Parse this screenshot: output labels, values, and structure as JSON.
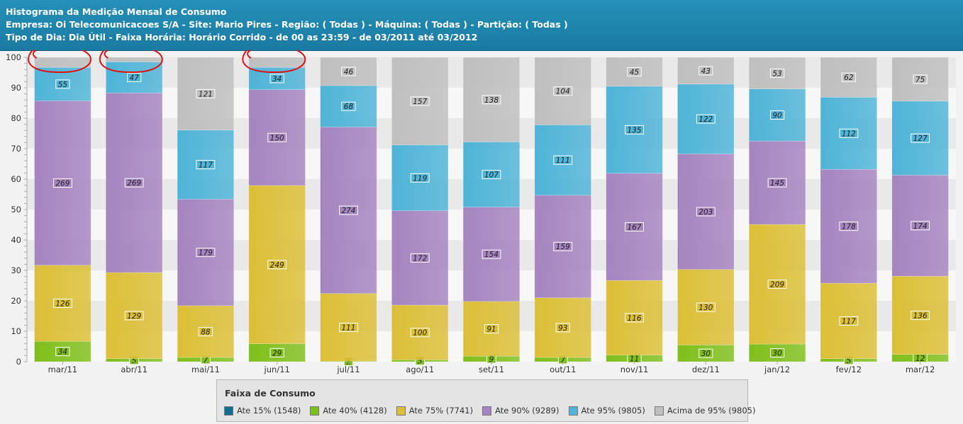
{
  "header": {
    "title": "Histograma da Medição Mensal de Consumo",
    "line2": "Empresa: Oi Telecomunicacoes S/A - Site: Mario Pires - Região: ( Todas ) - Máquina: ( Todas ) - Partição: ( Todas )",
    "line3": "Tipo de Dia: Dia Útil - Faixa Horária: Horário Corrido - de 00 as 23:59 - de 03/2011 até 03/2012"
  },
  "legend": {
    "title": "Faixa de Consumo",
    "items": [
      {
        "label": "Ate 15% (1548)",
        "color": "#0f6f93"
      },
      {
        "label": "Ate 40% (4128)",
        "color": "#7fbf1a"
      },
      {
        "label": "Ate 75% (7741)",
        "color": "#dcbf36"
      },
      {
        "label": "Ate 90% (9289)",
        "color": "#a584c0"
      },
      {
        "label": "Ate 95% (9805)",
        "color": "#4eb4d8"
      },
      {
        "label": "Acima de 95% (9805)",
        "color": "#bfbfbf"
      }
    ]
  },
  "chart_data": {
    "type": "bar",
    "stacked": true,
    "categories": [
      "mar/11",
      "abr/11",
      "mai/11",
      "jun/11",
      "jul/11",
      "ago/11",
      "set/11",
      "out/11",
      "nov/11",
      "dez/11",
      "jan/12",
      "fev/12",
      "mar/12"
    ],
    "ylim": [
      0,
      100
    ],
    "yticks": [
      0,
      10,
      20,
      30,
      40,
      50,
      60,
      70,
      80,
      90,
      100
    ],
    "grid": true,
    "legend_position": "bottom",
    "series": [
      {
        "name": "Ate 40%",
        "color": "#7fbf1a",
        "values": [
          6.7,
          1.0,
          1.4,
          5.9,
          0.2,
          0.6,
          1.8,
          1.4,
          2.2,
          5.5,
          5.8,
          1.0,
          2.4
        ],
        "labels": [
          "34",
          "5",
          "7",
          "29",
          "1",
          "3",
          "9",
          "7",
          "11",
          "30",
          "30",
          "5",
          "12"
        ]
      },
      {
        "name": "Ate 75%",
        "color": "#dcbf36",
        "values": [
          25.0,
          28.3,
          17.0,
          52.0,
          22.2,
          18.0,
          18.0,
          19.6,
          24.5,
          24.8,
          39.3,
          24.8,
          25.7
        ],
        "labels": [
          "126",
          "129",
          "88",
          "249",
          "111",
          "100",
          "91",
          "93",
          "116",
          "130",
          "209",
          "117",
          "136"
        ]
      },
      {
        "name": "Ate 90%",
        "color": "#a584c0",
        "values": [
          54.0,
          59.0,
          35.0,
          31.5,
          54.7,
          31.0,
          31.0,
          33.7,
          35.2,
          38.0,
          27.4,
          37.4,
          33.2
        ],
        "labels": [
          "269",
          "269",
          "179",
          "150",
          "274",
          "172",
          "154",
          "159",
          "167",
          "203",
          "145",
          "178",
          "174"
        ]
      },
      {
        "name": "Ate 95%",
        "color": "#4eb4d8",
        "values": [
          11.0,
          10.2,
          22.7,
          7.3,
          13.6,
          21.6,
          21.4,
          23.1,
          28.6,
          22.9,
          17.1,
          23.7,
          24.3
        ],
        "labels": [
          "55",
          "47",
          "117",
          "34",
          "68",
          "119",
          "107",
          "111",
          "135",
          "122",
          "90",
          "112",
          "127"
        ]
      },
      {
        "name": "Acima de 95%",
        "color": "#bfbfbf",
        "values": [
          3.3,
          1.5,
          23.9,
          3.3,
          9.3,
          28.8,
          27.8,
          22.2,
          9.5,
          8.8,
          10.4,
          13.1,
          14.4
        ],
        "labels": [
          "",
          "",
          "121",
          "",
          "46",
          "157",
          "138",
          "104",
          "45",
          "43",
          "53",
          "62",
          "75"
        ]
      }
    ],
    "annotations": [
      "mar/11",
      "abr/11",
      "jun/11"
    ]
  }
}
